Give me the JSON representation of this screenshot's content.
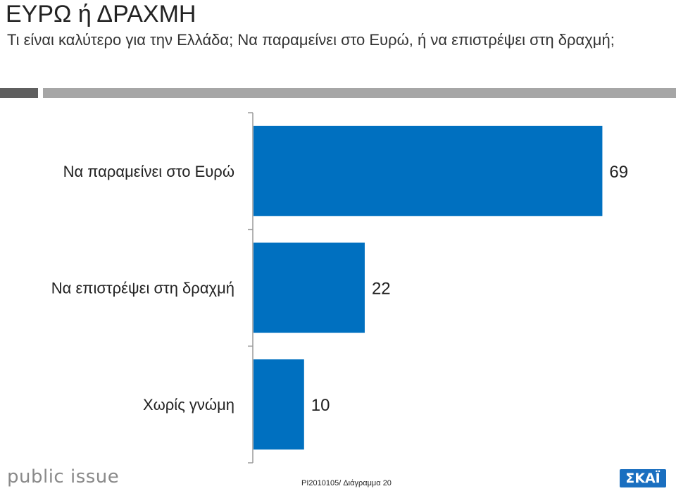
{
  "header": {
    "title": "ΕΥΡΩ ή ΔΡΑΧΜΗ",
    "question": "Τι είναι καλύτερο για την Ελλάδα; Να παραμείνει στο Ευρώ, ή να επιστρέψει στη δραχμή;"
  },
  "colors": {
    "bar": "#0070c0",
    "axis": "#9a9a9a",
    "divider_dark": "#5f5f5f",
    "divider_light": "#a6a6a6",
    "brand_right": "#1a6fc0"
  },
  "chart_data": {
    "type": "bar",
    "orientation": "horizontal",
    "categories": [
      "Να παραμείνει στο Ευρώ",
      "Να επιστρέψει στη δραχμή",
      "Χωρίς γνώμη"
    ],
    "values": [
      69,
      22,
      10
    ],
    "xlim": [
      0,
      100
    ],
    "grid": false,
    "legend": "none",
    "data_labels": true
  },
  "footer": {
    "logo_left": "public issue",
    "code": "PI2010105/ Διάγραμμα 20",
    "logo_right": "ΣΚΑΪ"
  }
}
